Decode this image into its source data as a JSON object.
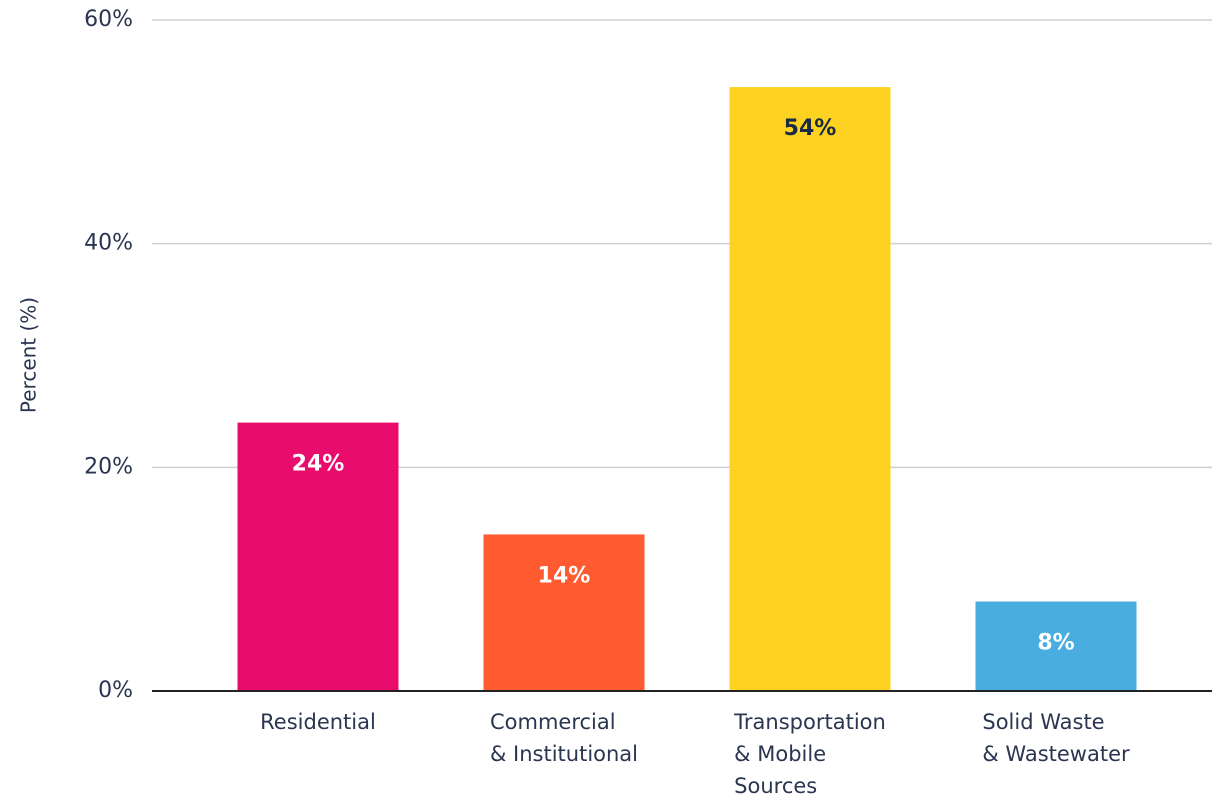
{
  "chart_data": {
    "type": "bar",
    "ylabel": "Percent (%)",
    "categories": [
      "Residential",
      "Commercial\n& Institutional",
      "Transportation\n& Mobile\nSources",
      "Solid Waste\n& Wastewater"
    ],
    "values": [
      24,
      14,
      54,
      8
    ],
    "value_labels": [
      "24%",
      "14%",
      "54%",
      "8%"
    ],
    "colors": [
      "#e80c6c",
      "#ff5a30",
      "#fdd220",
      "#4aaddf"
    ],
    "value_label_colors": [
      "#ffffff",
      "#ffffff",
      "#1b2a44",
      "#ffffff"
    ],
    "ylim": [
      0,
      60
    ],
    "yticks": [
      {
        "value": 0,
        "label": "0%"
      },
      {
        "value": 20,
        "label": "20%"
      },
      {
        "value": 40,
        "label": "40%"
      },
      {
        "value": 60,
        "label": "60%"
      }
    ],
    "grid": true
  }
}
